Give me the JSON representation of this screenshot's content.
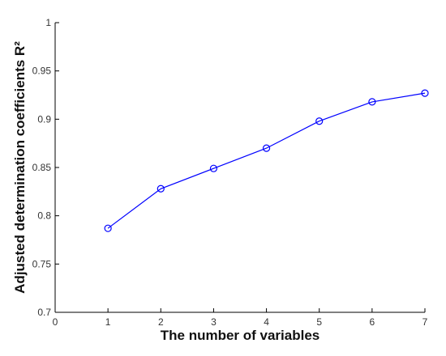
{
  "chart_data": {
    "type": "line",
    "title": "",
    "xlabel": "The number of variables",
    "ylabel": "Adjusted determination coefficients R²",
    "x": [
      1,
      2,
      3,
      4,
      5,
      6,
      7
    ],
    "series": [
      {
        "values": [
          0.787,
          0.828,
          0.849,
          0.87,
          0.898,
          0.918,
          0.927
        ],
        "color": "#0000ff",
        "marker": "circle"
      }
    ],
    "xlim": [
      0,
      7
    ],
    "ylim": [
      0.7,
      1.0
    ],
    "xticks": [
      0,
      1,
      2,
      3,
      4,
      5,
      6,
      7
    ],
    "yticks": [
      0.7,
      0.75,
      0.8,
      0.85,
      0.9,
      0.95,
      1.0
    ],
    "xtick_labels": [
      "0",
      "1",
      "2",
      "3",
      "4",
      "5",
      "6",
      "7"
    ],
    "ytick_labels": [
      "0.7",
      "0.75",
      "0.8",
      "0.85",
      "0.9",
      "0.95",
      "1"
    ],
    "grid": false,
    "legend": "none"
  }
}
